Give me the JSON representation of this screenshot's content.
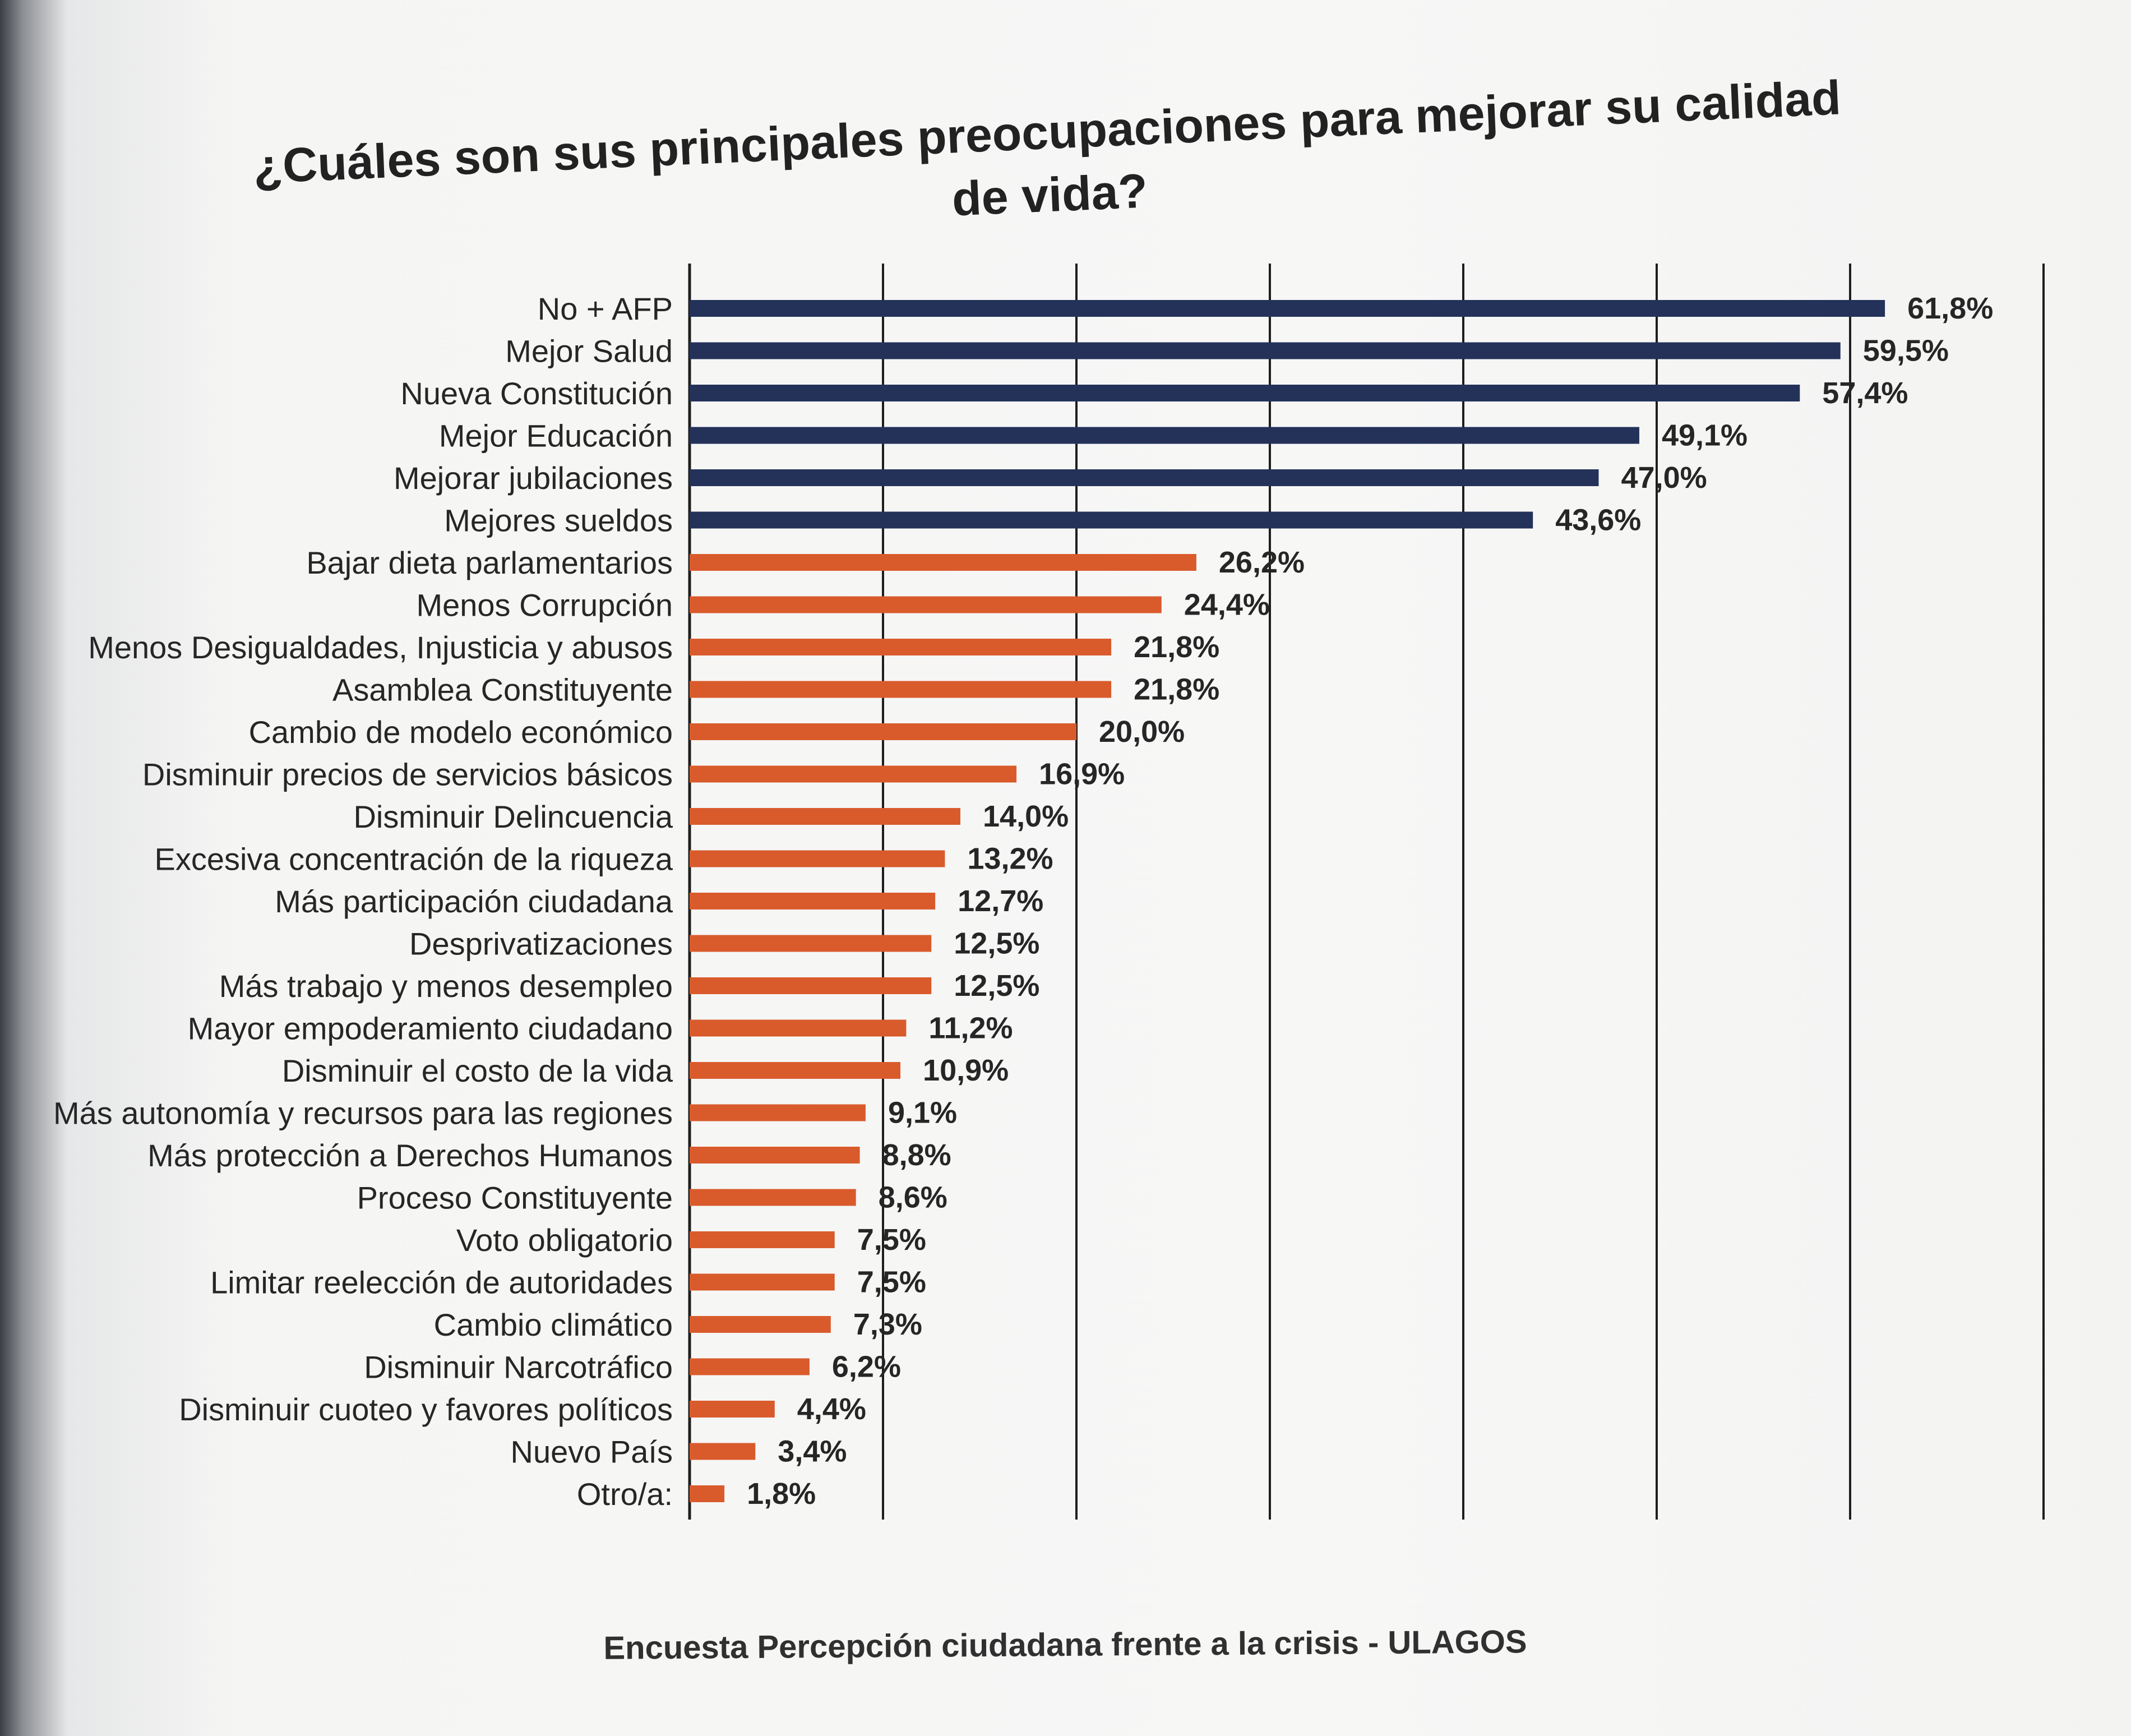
{
  "chart_data": {
    "type": "bar",
    "orientation": "horizontal",
    "title": "¿Cuáles son sus principales preocupaciones para mejorar su calidad\nde vida?",
    "source": "Encuesta Percepción ciudadana frente a la crisis - ULAGOS",
    "xlim": [
      0,
      70
    ],
    "grid": "vertical lines",
    "categories": [
      "No + AFP",
      "Mejor Salud",
      "Nueva Constitución",
      "Mejor Educación",
      "Mejorar jubilaciones",
      "Mejores sueldos",
      "Bajar dieta parlamentarios",
      "Menos Corrupción",
      "Menos Desigualdades, Injusticia y abusos",
      "Asamblea Constituyente",
      "Cambio de modelo económico",
      "Disminuir precios de servicios básicos",
      "Disminuir Delincuencia",
      "Excesiva concentración de la riqueza",
      "Más participación ciudadana",
      "Desprivatizaciones",
      "Más trabajo y menos desempleo",
      "Mayor empoderamiento ciudadano",
      "Disminuir el costo de la vida",
      "Más autonomía y recursos para las regiones",
      "Más protección a Derechos Humanos",
      "Proceso Constituyente",
      "Voto obligatorio",
      "Limitar reelección de autoridades",
      "Cambio climático",
      "Disminuir Narcotráfico",
      "Disminuir cuoteo y favores políticos",
      "Nuevo País",
      "Otro/a:"
    ],
    "values": [
      61.8,
      59.5,
      57.4,
      49.1,
      47.0,
      43.6,
      26.2,
      24.4,
      21.8,
      21.8,
      20.0,
      16.9,
      14.0,
      13.2,
      12.7,
      12.5,
      12.5,
      11.2,
      10.9,
      9.1,
      8.8,
      8.6,
      7.5,
      7.5,
      7.3,
      6.2,
      4.4,
      3.4,
      1.8
    ],
    "value_labels": [
      "61,8%",
      "59,5%",
      "57,4%",
      "49,1%",
      "47,0%",
      "43,6%",
      "26,2%",
      "24,4%",
      "21,8%",
      "21,8%",
      "20,0%",
      "16,9%",
      "14,0%",
      "13,2%",
      "12,7%",
      "12,5%",
      "12,5%",
      "11,2%",
      "10,9%",
      "9,1%",
      "8,8%",
      "8,6%",
      "7,5%",
      "7,5%",
      "7,3%",
      "6,2%",
      "4,4%",
      "3,4%",
      "1,8%"
    ],
    "bar_colors": {
      "top_group": "#24325a",
      "rest": "#d95b2c"
    },
    "top_group_count": 6
  }
}
